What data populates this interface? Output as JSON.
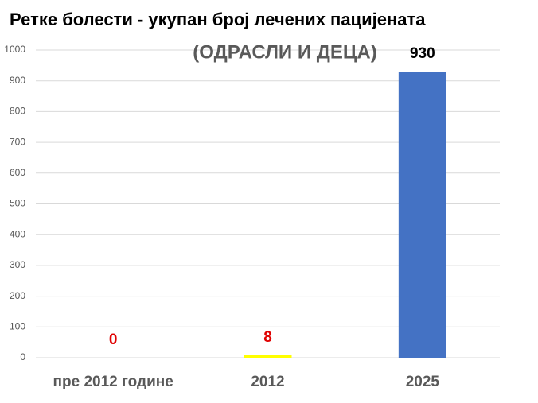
{
  "chart_data": {
    "type": "bar",
    "title": "Ретке болести - укупан број лечених пацијената",
    "subtitle": "(ОДРАСЛИ И ДЕЦА)",
    "categories": [
      "пре 2012 године",
      "2012",
      "2025"
    ],
    "values": [
      0,
      8,
      930
    ],
    "colors": [
      "#4472c4",
      "#ffff00",
      "#4472c4"
    ],
    "label_colors": [
      "#e00000",
      "#e00000",
      "#000000"
    ],
    "ylim": [
      0,
      1000
    ],
    "yticks": [
      0,
      100,
      200,
      300,
      400,
      500,
      600,
      700,
      800,
      900,
      1000
    ],
    "grid": true
  }
}
